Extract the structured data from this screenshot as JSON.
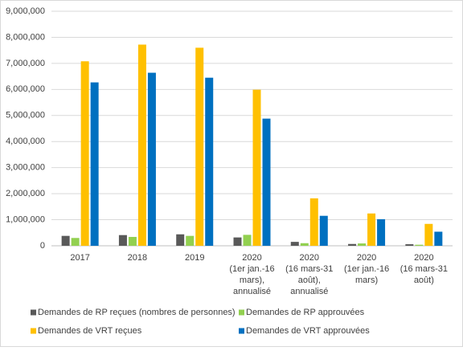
{
  "chart_data": {
    "type": "bar",
    "categories": [
      [
        "2017"
      ],
      [
        "2018"
      ],
      [
        "2019"
      ],
      [
        "2020",
        "(1er jan.-16",
        "mars),",
        "annualisé"
      ],
      [
        "2020",
        "(16 mars-31",
        "août),",
        "annualisé"
      ],
      [
        "2020",
        "(1er jan.-16",
        "mars)"
      ],
      [
        "2020",
        "(16 mars-31",
        "août)"
      ]
    ],
    "series": [
      {
        "name": "Demandes de RP reçues (nombres de personnes)",
        "color": "#595959",
        "values": [
          380000,
          410000,
          440000,
          320000,
          150000,
          70000,
          60000
        ]
      },
      {
        "name": "Demandes de RP approuvées",
        "color": "#92d050",
        "values": [
          300000,
          340000,
          380000,
          420000,
          100000,
          90000,
          40000
        ]
      },
      {
        "name": "Demandes de VRT reçues",
        "color": "#ffc000",
        "values": [
          7080000,
          7720000,
          7600000,
          5990000,
          1820000,
          1240000,
          840000
        ]
      },
      {
        "name": "Demandes de VRT approuvées",
        "color": "#0070c0",
        "values": [
          6270000,
          6640000,
          6450000,
          4880000,
          1150000,
          1020000,
          540000
        ]
      }
    ],
    "ylim": [
      0,
      9000000
    ],
    "yticks": [
      0,
      {
        "value": 1000000,
        "label": "1,000,000"
      },
      {
        "value": 2000000,
        "label": "2,000,000"
      },
      {
        "value": 3000000,
        "label": "3,000,000"
      },
      {
        "value": 4000000,
        "label": "4,000,000"
      },
      {
        "value": 5000000,
        "label": "5,000,000"
      },
      {
        "value": 6000000,
        "label": "6,000,000"
      },
      {
        "value": 7000000,
        "label": "7,000,000"
      },
      {
        "value": 8000000,
        "label": "8,000,000"
      },
      {
        "value": 9000000,
        "label": "9,000,000"
      }
    ],
    "grid": true,
    "legend": "bottom"
  }
}
